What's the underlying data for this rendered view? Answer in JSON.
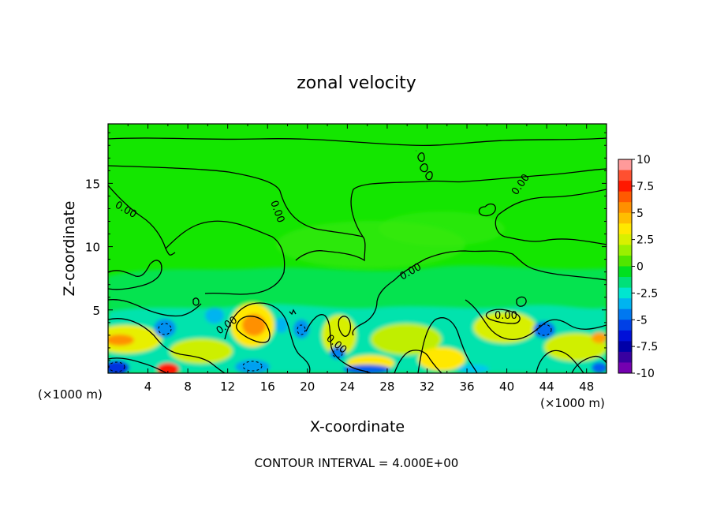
{
  "chart_data": {
    "type": "heatmap",
    "title": "zonal velocity",
    "xlabel": "X-coordinate",
    "ylabel": "Z-coordinate",
    "x_unit": "(×1000 m)",
    "y_unit": "(×1000 m)",
    "xlim": [
      0,
      50
    ],
    "ylim": [
      0,
      19.7
    ],
    "x_ticks": [
      4,
      8,
      12,
      16,
      20,
      24,
      28,
      32,
      36,
      40,
      44,
      48
    ],
    "y_ticks": [
      5,
      10,
      15
    ],
    "colorbar": {
      "range": [
        -10,
        10
      ],
      "ticks": [
        "10",
        "7.5",
        "5",
        "2.5",
        "0",
        "-2.5",
        "-5",
        "-7.5",
        "-10"
      ],
      "colors": [
        "#ff9a9a",
        "#ff5030",
        "#ff1800",
        "#ff5a00",
        "#ff9000",
        "#ffbe00",
        "#ffe800",
        "#d8f000",
        "#9af000",
        "#50e600",
        "#00e020",
        "#00e07a",
        "#00e6d0",
        "#00b4f0",
        "#0078f0",
        "#0040e6",
        "#0010d8",
        "#0000a8",
        "#3800a0",
        "#7400b0"
      ]
    },
    "contour_labels": [
      "0.00",
      "0.00",
      "0.00",
      "0.00",
      "0.00",
      "0.00",
      "0.00",
      "0.00"
    ],
    "background_color": "#14e600",
    "contour_interval_label": "CONTOUR INTERVAL = 4.000E+00"
  }
}
